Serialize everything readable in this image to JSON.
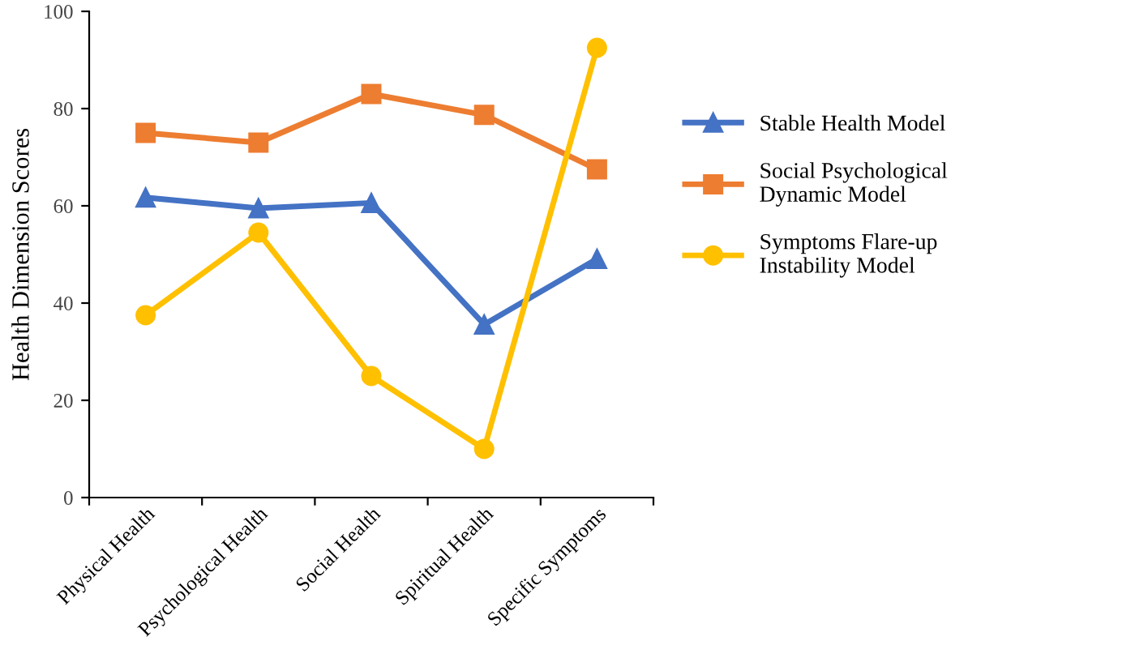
{
  "chart_data": {
    "type": "line",
    "ylabel": "Health Dimension Scores",
    "categories": [
      "Physical Health",
      "Psychological Health",
      "Social Health",
      "Spiritual Health",
      "Specific Symptoms"
    ],
    "series": [
      {
        "name": "Stable Health Model",
        "color": "#4472c4",
        "marker": "triangle",
        "values": [
          61.7,
          59.5,
          60.6,
          35.6,
          49.1
        ]
      },
      {
        "name": "Social Psychological\nDynamic Model",
        "color": "#ed7d31",
        "marker": "square",
        "values": [
          75,
          73,
          83,
          78.7,
          67.5
        ]
      },
      {
        "name": "Symptoms Flare-up\nInstability Model",
        "color": "#ffc000",
        "marker": "circle",
        "values": [
          37.5,
          54.5,
          25,
          10,
          92.5
        ]
      }
    ],
    "ylim": [
      0,
      100
    ],
    "yticks": [
      0,
      20,
      40,
      60,
      80,
      100
    ],
    "grid": false,
    "legend": "right",
    "line_style": "solid"
  }
}
